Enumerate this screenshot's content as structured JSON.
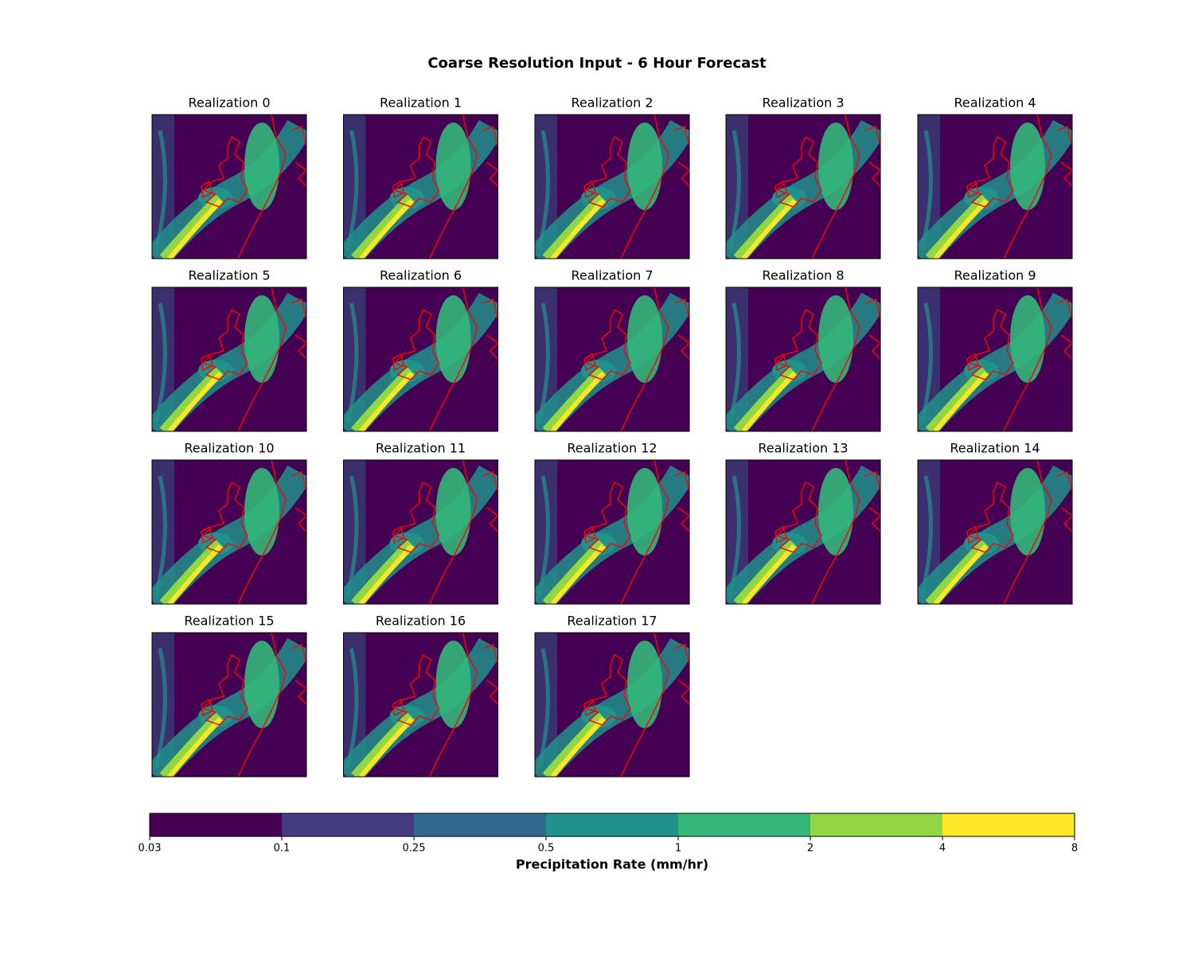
{
  "title": "Coarse Resolution Input - 6 Hour Forecast",
  "panels": [
    {
      "title": "Realization 0"
    },
    {
      "title": "Realization 1"
    },
    {
      "title": "Realization 2"
    },
    {
      "title": "Realization 3"
    },
    {
      "title": "Realization 4"
    },
    {
      "title": "Realization 5"
    },
    {
      "title": "Realization 6"
    },
    {
      "title": "Realization 7"
    },
    {
      "title": "Realization 8"
    },
    {
      "title": "Realization 9"
    },
    {
      "title": "Realization 10"
    },
    {
      "title": "Realization 11"
    },
    {
      "title": "Realization 12"
    },
    {
      "title": "Realization 13"
    },
    {
      "title": "Realization 14"
    },
    {
      "title": "Realization 15"
    },
    {
      "title": "Realization 16"
    },
    {
      "title": "Realization 17"
    }
  ],
  "colorbar": {
    "label": "Precipitation Rate (mm/hr)",
    "boundaries": [
      0.03,
      0.1,
      0.25,
      0.5,
      1,
      2,
      4,
      8
    ],
    "colors": [
      "#440154",
      "#443983",
      "#31688e",
      "#21918c",
      "#35b779",
      "#90d743",
      "#fde725"
    ]
  },
  "coastline_color": "#ff0000"
}
